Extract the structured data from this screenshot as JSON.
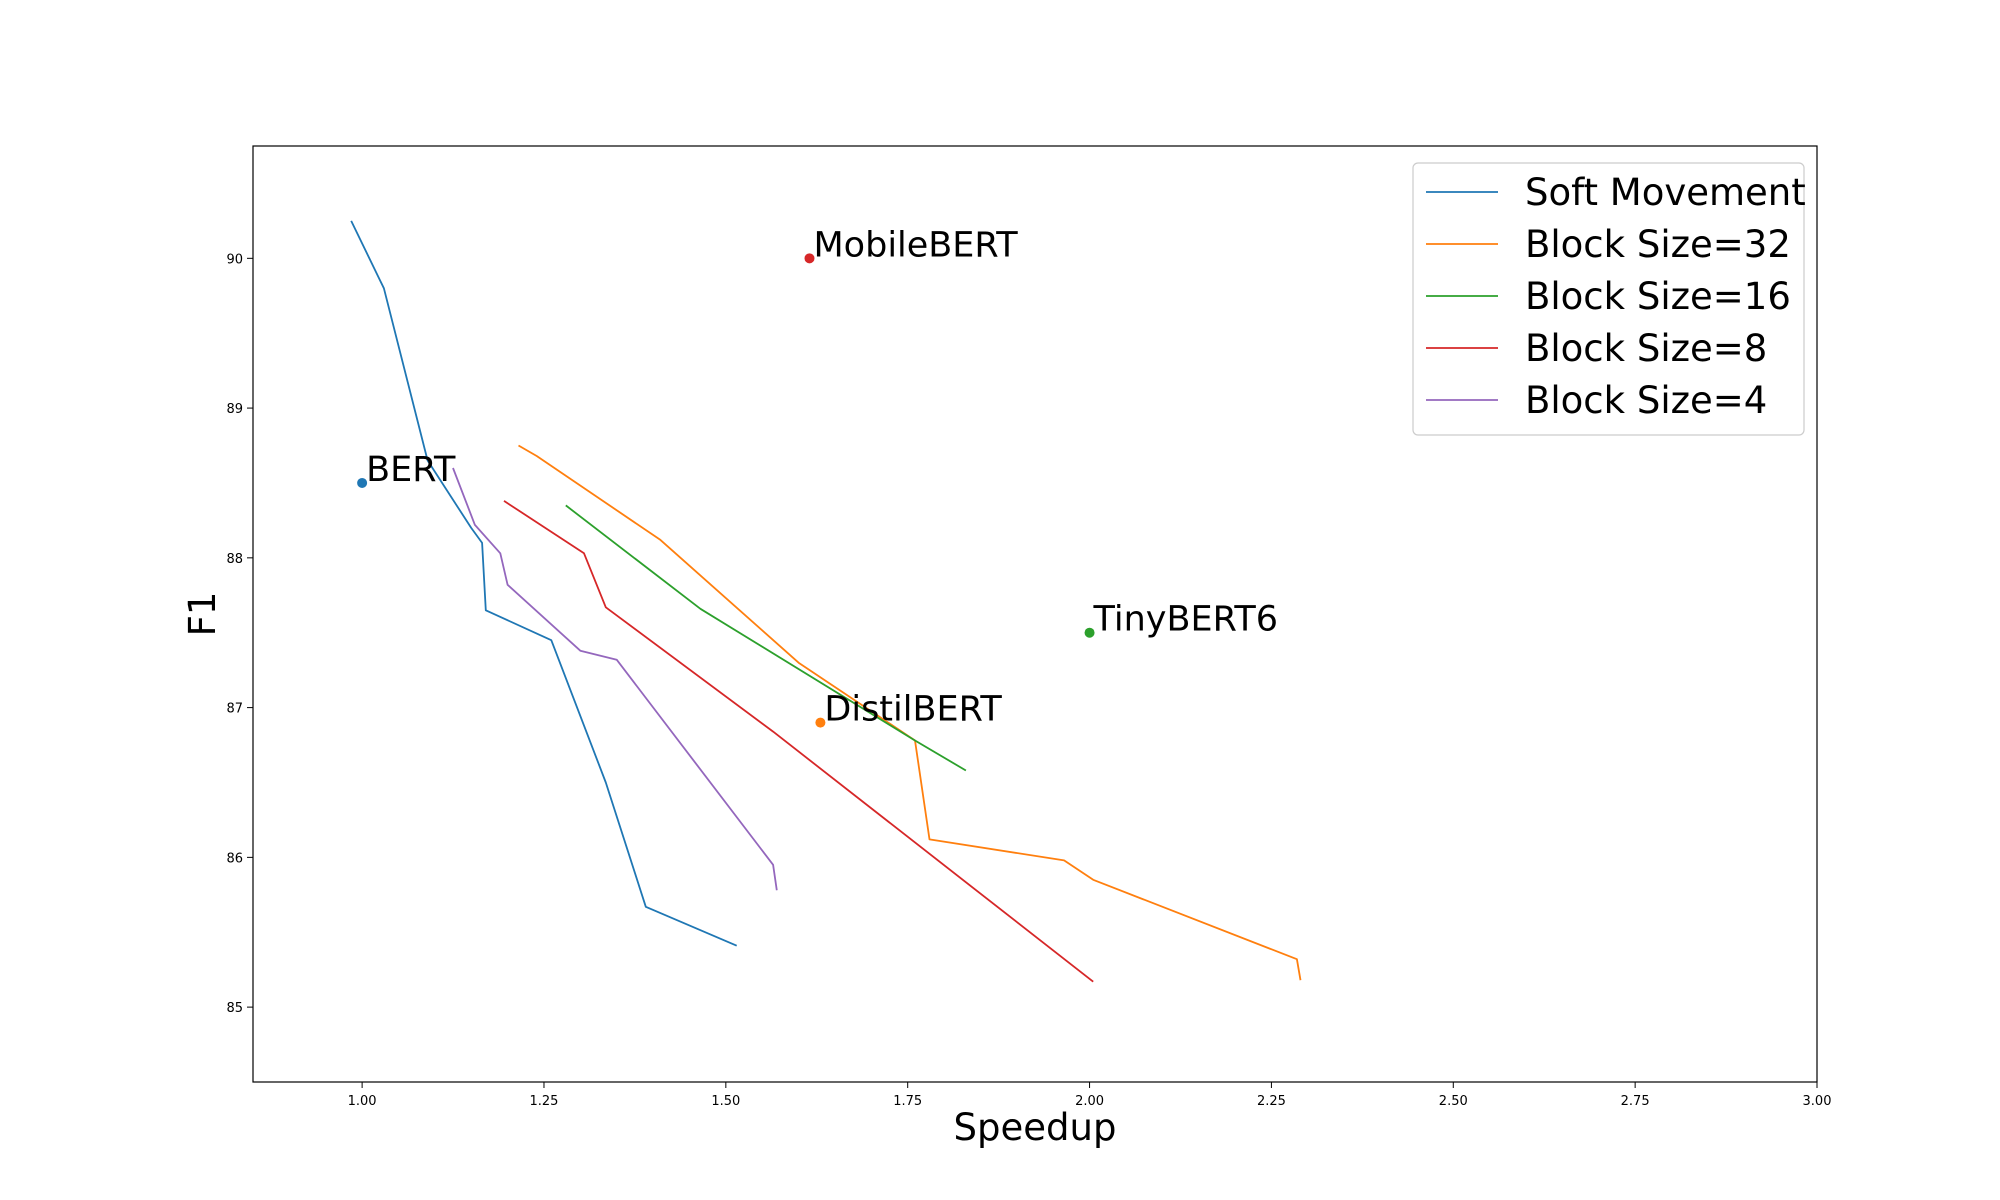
{
  "chart_data": {
    "type": "line",
    "title": "",
    "xlabel": "Speedup",
    "ylabel": "F1",
    "xlim": [
      0.85,
      3.0
    ],
    "ylim": [
      84.5,
      90.75
    ],
    "grid": false,
    "legend_position": "top-right",
    "x_ticks": [
      "1.00",
      "1.25",
      "1.50",
      "1.75",
      "2.00",
      "2.25",
      "2.50",
      "2.75",
      "3.00"
    ],
    "y_ticks": [
      "85",
      "86",
      "87",
      "88",
      "89",
      "90"
    ],
    "series": [
      {
        "name": "Soft Movement",
        "color": "#1f77b4",
        "x": [
          0.985,
          1.03,
          1.09,
          1.15,
          1.165,
          1.17,
          1.26,
          1.335,
          1.39,
          1.515
        ],
        "y": [
          90.25,
          89.8,
          88.65,
          88.2,
          88.1,
          87.65,
          87.45,
          86.5,
          85.67,
          85.41
        ]
      },
      {
        "name": "Block Size=32",
        "color": "#ff7f0e",
        "x": [
          1.215,
          1.24,
          1.41,
          1.6,
          1.76,
          1.78,
          1.965,
          2.005,
          2.285,
          2.29
        ],
        "y": [
          88.75,
          88.68,
          88.12,
          87.3,
          86.78,
          86.12,
          85.98,
          85.85,
          85.32,
          85.18
        ]
      },
      {
        "name": "Block Size=16",
        "color": "#2ca02c",
        "x": [
          1.28,
          1.465,
          1.76,
          1.83
        ],
        "y": [
          88.35,
          87.66,
          86.78,
          86.58
        ]
      },
      {
        "name": "Block Size=8",
        "color": "#d62728",
        "x": [
          1.195,
          1.305,
          1.335,
          1.565,
          2.005
        ],
        "y": [
          88.38,
          88.03,
          87.67,
          86.84,
          85.17
        ]
      },
      {
        "name": "Block Size=4",
        "color": "#9467bd",
        "x": [
          1.125,
          1.155,
          1.19,
          1.2,
          1.3,
          1.35,
          1.565,
          1.57
        ],
        "y": [
          88.6,
          88.22,
          88.03,
          87.82,
          87.38,
          87.32,
          85.95,
          85.78
        ]
      }
    ],
    "points": [
      {
        "label": "BERT",
        "x": 1.0,
        "y": 88.5,
        "color": "#1f77b4"
      },
      {
        "label": "MobileBERT",
        "x": 1.615,
        "y": 90.0,
        "color": "#d62728"
      },
      {
        "label": "TinyBERT6",
        "x": 2.0,
        "y": 87.5,
        "color": "#2ca02c"
      },
      {
        "label": "DistilBERT",
        "x": 1.63,
        "y": 86.9,
        "color": "#ff7f0e"
      }
    ]
  }
}
